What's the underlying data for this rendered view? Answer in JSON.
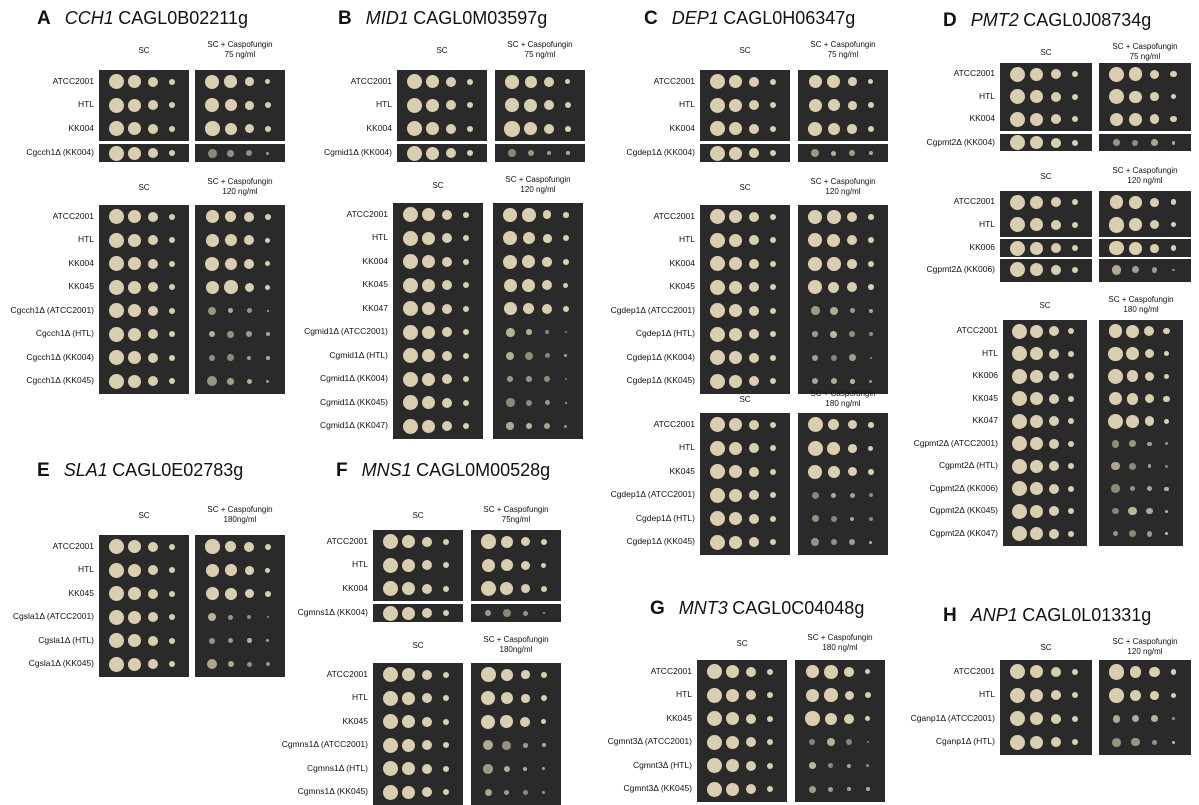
{
  "figure": {
    "panels": [
      {
        "letter": "A",
        "gene": "CCH1",
        "locus": "CAGL0B02211g",
        "blocks": [
          {
            "col1": "SC",
            "col2": "SC + Caspofungin",
            "col2b": "75 ng/ml",
            "rows": [
              "ATCC2001",
              "HTL",
              "KK004",
              "Cgcch1Δ (KK004)"
            ]
          },
          {
            "col1": "SC",
            "col2": "SC + Caspofungin",
            "col2b": "120 ng/ml",
            "rows": [
              "ATCC2001",
              "HTL",
              "KK004",
              "KK045",
              "Cgcch1Δ (ATCC2001)",
              "Cgcch1Δ (HTL)",
              "Cgcch1Δ (KK004)",
              "Cgcch1Δ (KK045)"
            ]
          }
        ]
      },
      {
        "letter": "B",
        "gene": "MID1",
        "locus": "CAGL0M03597g",
        "blocks": [
          {
            "col1": "SC",
            "col2": "SC + Caspofungin",
            "col2b": "75 ng/ml",
            "rows": [
              "ATCC2001",
              "HTL",
              "KK004",
              "Cgmid1Δ (KK004)"
            ]
          },
          {
            "col1": "SC",
            "col2": "SC + Caspofungin",
            "col2b": "120 ng/ml",
            "rows": [
              "ATCC2001",
              "HTL",
              "KK004",
              "KK045",
              "KK047",
              "Cgmid1Δ (ATCC2001)",
              "Cgmid1Δ (HTL)",
              "Cgmid1Δ (KK004)",
              "Cgmid1Δ (KK045)",
              "Cgmid1Δ (KK047)"
            ]
          }
        ]
      },
      {
        "letter": "C",
        "gene": "DEP1",
        "locus": "CAGL0H06347g",
        "blocks": [
          {
            "col1": "SC",
            "col2": "SC + Caspofungin",
            "col2b": "75 ng/ml",
            "rows": [
              "ATCC2001",
              "HTL",
              "KK004",
              "Cgdep1Δ (KK004)"
            ]
          },
          {
            "col1": "SC",
            "col2": "SC + Caspofungin",
            "col2b": "120 ng/ml",
            "rows": [
              "ATCC2001",
              "HTL",
              "KK004",
              "KK045",
              "Cgdep1Δ (ATCC2001)",
              "Cgdep1Δ (HTL)",
              "Cgdep1Δ (KK004)",
              "Cgdep1Δ (KK045)"
            ]
          },
          {
            "col1": "SC",
            "col2": "SC + Caspofungin",
            "col2b": "180 ng/ml",
            "rows": [
              "ATCC2001",
              "HTL",
              "KK045",
              "Cgdep1Δ (ATCC2001)",
              "Cgdep1Δ (HTL)",
              "Cgdep1Δ (KK045)"
            ]
          }
        ]
      },
      {
        "letter": "D",
        "gene": "PMT2",
        "locus": "CAGL0J08734g",
        "blocks": [
          {
            "col1": "SC",
            "col2": "SC + Caspofungin",
            "col2b": "75 ng/ml",
            "rows": [
              "ATCC2001",
              "HTL",
              "KK004",
              "Cgpmt2Δ (KK004)"
            ]
          },
          {
            "col1": "SC",
            "col2": "SC + Caspofungin",
            "col2b": "120 ng/ml",
            "rows": [
              "ATCC2001",
              "HTL",
              "KK006",
              "Cgpmt2Δ (KK006)"
            ]
          },
          {
            "col1": "SC",
            "col2": "SC + Caspofungin",
            "col2b": "180 ng/ml",
            "rows": [
              "ATCC2001",
              "HTL",
              "KK006",
              "KK045",
              "KK047",
              "Cgpmt2Δ (ATCC2001)",
              "Cgpmt2Δ (HTL)",
              "Cgpmt2Δ (KK006)",
              "Cgpmt2Δ (KK045)",
              "Cgpmt2Δ (KK047)"
            ]
          }
        ]
      },
      {
        "letter": "E",
        "gene": "SLA1",
        "locus": "CAGL0E02783g",
        "blocks": [
          {
            "col1": "SC",
            "col2": "SC + Caspofungin",
            "col2b": "180ng/ml",
            "rows": [
              "ATCC2001",
              "HTL",
              "KK045",
              "Cgsla1Δ (ATCC2001)",
              "Cgsla1Δ (HTL)",
              "Cgsla1Δ (KK045)"
            ]
          }
        ]
      },
      {
        "letter": "F",
        "gene": "MNS1",
        "locus": "CAGL0M00528g",
        "blocks": [
          {
            "col1": "SC",
            "col2": "SC + Caspofungin",
            "col2b": "75ng/ml",
            "rows": [
              "ATCC2001",
              "HTL",
              "KK004",
              "Cgmns1Δ (KK004)"
            ]
          },
          {
            "col1": "SC",
            "col2": "SC + Caspofungin",
            "col2b": "180ng/ml",
            "rows": [
              "ATCC2001",
              "HTL",
              "KK045",
              "Cgmns1Δ (ATCC2001)",
              "Cgmns1Δ (HTL)",
              "Cgmns1Δ (KK045)"
            ]
          }
        ]
      },
      {
        "letter": "G",
        "gene": "MNT3",
        "locus": "CAGL0C04048g",
        "blocks": [
          {
            "col1": "SC",
            "col2": "SC + Caspofungin",
            "col2b": "180 ng/ml",
            "rows": [
              "ATCC2001",
              "HTL",
              "KK045",
              "Cgmnt3Δ (ATCC2001)",
              "Cgmnt3Δ (HTL)",
              "Cgmnt3Δ (KK045)"
            ]
          }
        ]
      },
      {
        "letter": "H",
        "gene": "ANP1",
        "locus": "CAGL0L01331g",
        "blocks": [
          {
            "col1": "SC",
            "col2": "SC + Caspofungin",
            "col2b": "120 ng/ml",
            "rows": [
              "ATCC2001",
              "HTL",
              "Cganp1Δ (ATCC2001)",
              "Cganp1Δ (HTL)"
            ]
          }
        ]
      }
    ]
  }
}
